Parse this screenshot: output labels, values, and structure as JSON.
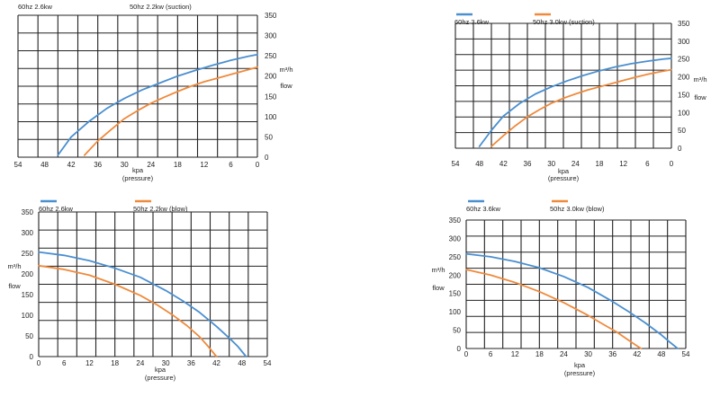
{
  "colors": {
    "series_60hz": "#4a8fd0",
    "series_50hz": "#ef8a3c",
    "grid": "#222222"
  },
  "chart_data": [
    {
      "type": "line",
      "mode": "suction",
      "title": "",
      "xlabel": [
        "kpa",
        "(pressure)"
      ],
      "ylabel": [
        "m³/h",
        "flow"
      ],
      "xlim": [
        0,
        54
      ],
      "ylim": [
        0,
        350
      ],
      "x_reversed": true,
      "y_axis_side": "right",
      "xticks": [
        54,
        48,
        42,
        36,
        30,
        24,
        18,
        12,
        6,
        0
      ],
      "yticks": [
        0,
        50,
        100,
        150,
        200,
        250,
        300,
        350
      ],
      "grid": true,
      "legend_placement": "top-left",
      "series": [
        {
          "name": "60hz 2.6kw",
          "x": [
            45,
            42,
            38,
            34,
            30,
            26,
            22,
            18,
            14,
            10,
            6,
            2,
            0
          ],
          "y": [
            5,
            50,
            88,
            120,
            145,
            166,
            183,
            200,
            214,
            227,
            239,
            249,
            253
          ]
        },
        {
          "name": "50hz  2.2kw  (suction)",
          "x": [
            39,
            36,
            33,
            30,
            27,
            24,
            21,
            18,
            15,
            12,
            9,
            6,
            3,
            0
          ],
          "y": [
            5,
            40,
            68,
            95,
            115,
            133,
            148,
            162,
            175,
            186,
            195,
            204,
            213,
            222
          ]
        }
      ]
    },
    {
      "type": "line",
      "mode": "suction",
      "title": "",
      "xlabel": [
        "kpa",
        "(pressure)"
      ],
      "ylabel": [
        "m³/h",
        "flow"
      ],
      "xlim": [
        0,
        54
      ],
      "ylim": [
        0,
        350
      ],
      "x_reversed": true,
      "y_axis_side": "right",
      "xticks": [
        54,
        48,
        42,
        36,
        30,
        24,
        18,
        12,
        6,
        0
      ],
      "yticks": [
        0,
        50,
        100,
        150,
        200,
        250,
        300,
        350
      ],
      "grid": true,
      "legend_placement": "top-left",
      "series": [
        {
          "name": "60hz 3.6kw",
          "x": [
            48,
            45,
            42,
            38,
            34,
            30,
            26,
            22,
            18,
            14,
            10,
            6,
            2,
            0
          ],
          "y": [
            5,
            50,
            90,
            125,
            152,
            172,
            189,
            204,
            217,
            228,
            237,
            244,
            250,
            252
          ]
        },
        {
          "name": "50hz  3.0kw  (suction)",
          "x": [
            45,
            42,
            39,
            36,
            33,
            30,
            27,
            24,
            21,
            18,
            15,
            12,
            9,
            6,
            3,
            0
          ],
          "y": [
            5,
            35,
            63,
            88,
            108,
            126,
            140,
            152,
            163,
            172,
            181,
            190,
            199,
            207,
            214,
            220
          ]
        }
      ]
    },
    {
      "type": "line",
      "mode": "blow",
      "title": "",
      "xlabel": [
        "kpa",
        "(pressure)"
      ],
      "ylabel": [
        "m³/h",
        "flow"
      ],
      "xlim": [
        0,
        54
      ],
      "ylim": [
        0,
        350
      ],
      "x_reversed": false,
      "y_axis_side": "left",
      "xticks": [
        0,
        6,
        12,
        18,
        24,
        30,
        36,
        42,
        48,
        54
      ],
      "yticks": [
        0,
        50,
        100,
        150,
        200,
        250,
        300,
        350
      ],
      "grid": true,
      "legend_placement": "top-left",
      "series": [
        {
          "name": "60hz 2.6kw",
          "x": [
            0,
            6,
            12,
            18,
            24,
            30,
            34,
            38,
            42,
            45,
            47,
            49
          ],
          "y": [
            253,
            245,
            232,
            214,
            192,
            160,
            135,
            107,
            73,
            45,
            25,
            0
          ]
        },
        {
          "name": "50hz  2.2kw  (blow)",
          "x": [
            0,
            6,
            12,
            18,
            24,
            28,
            32,
            35,
            38,
            40,
            42
          ],
          "y": [
            220,
            211,
            197,
            175,
            148,
            125,
            98,
            75,
            48,
            25,
            0
          ]
        }
      ]
    },
    {
      "type": "line",
      "mode": "blow",
      "title": "",
      "xlabel": [
        "kpa",
        "(pressure)"
      ],
      "ylabel": [
        "m³/h",
        "flow"
      ],
      "xlim": [
        0,
        54
      ],
      "ylim": [
        0,
        350
      ],
      "x_reversed": false,
      "y_axis_side": "left",
      "xticks": [
        0,
        6,
        12,
        18,
        24,
        30,
        36,
        42,
        48,
        54
      ],
      "yticks": [
        0,
        50,
        100,
        150,
        200,
        250,
        300,
        350
      ],
      "grid": true,
      "legend_placement": "top-left",
      "series": [
        {
          "name": "60hz 3.6kw",
          "x": [
            0,
            6,
            12,
            18,
            24,
            30,
            36,
            40,
            44,
            48,
            50,
            52
          ],
          "y": [
            258,
            250,
            237,
            220,
            196,
            166,
            128,
            100,
            70,
            37,
            18,
            0
          ]
        },
        {
          "name": "50hz  3.0kw  (blow)",
          "x": [
            0,
            6,
            12,
            18,
            24,
            30,
            34,
            37,
            40,
            42,
            43
          ],
          "y": [
            215,
            200,
            180,
            155,
            125,
            90,
            64,
            45,
            22,
            7,
            0
          ]
        }
      ]
    }
  ]
}
